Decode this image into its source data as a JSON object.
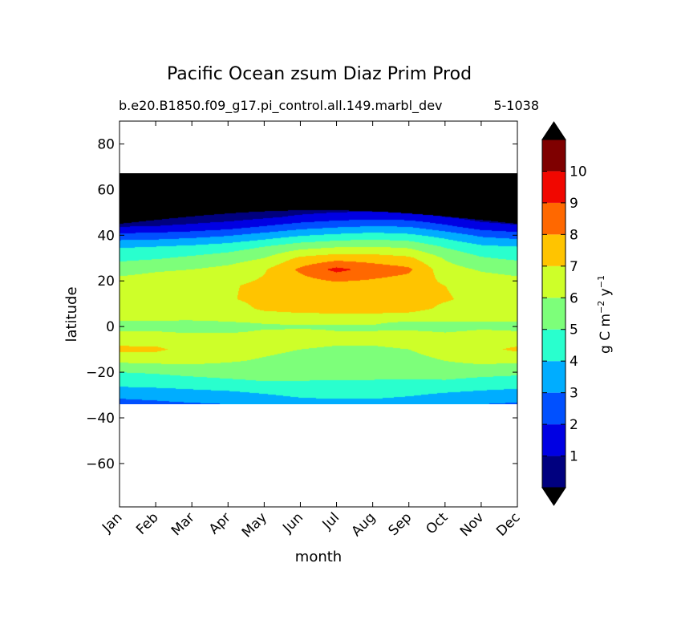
{
  "chart_data": {
    "type": "heatmap",
    "subtype": "filled-contour",
    "title": "Pacific Ocean zsum Diaz Prim Prod",
    "subtitle_left": "b.e20.B1850.f09_g17.pi_control.all.149.marbl_dev",
    "subtitle_right": "5-1038",
    "xlabel": "month",
    "ylabel": "latitude",
    "x_ticks": [
      "Jan",
      "Feb",
      "Mar",
      "Apr",
      "May",
      "Jun",
      "Jul",
      "Aug",
      "Sep",
      "Oct",
      "Nov",
      "Dec"
    ],
    "y_ticks": [
      "80",
      "60",
      "40",
      "20",
      "0",
      "−20",
      "−40",
      "−60"
    ],
    "y_tick_values": [
      80,
      60,
      40,
      20,
      0,
      -20,
      -40,
      -60
    ],
    "ylim": [
      -79,
      90
    ],
    "xlim": [
      0,
      11
    ],
    "data_lat_range": [
      -34,
      67
    ],
    "colorbar": {
      "label": "g C m⁻² y⁻¹",
      "label_main": "g C m",
      "label_exp1": "−2",
      "label_mid": " y",
      "label_exp2": "−1",
      "tick_labels": [
        "1",
        "2",
        "3",
        "4",
        "5",
        "6",
        "7",
        "8",
        "9",
        "10"
      ],
      "extend": "both",
      "under_color": "#000000",
      "over_color": "#000000",
      "colors": [
        "#00007f",
        "#0000e3",
        "#0050ff",
        "#00adff",
        "#29ffce",
        "#7dff7a",
        "#ceff29",
        "#ffc400",
        "#ff6800",
        "#f10700",
        "#7f0000"
      ]
    },
    "grid": false,
    "legend": "none",
    "annotations": "filled contours of primary productivity by month and latitude; black fill above ~45N (sea-ice region); peak 9-10 near 25N in Jul",
    "levels": [
      0,
      1,
      2,
      3,
      4,
      5,
      6,
      7,
      8,
      9,
      10,
      11
    ],
    "z_grid": {
      "months": [
        0,
        1,
        2,
        3,
        4,
        5,
        6,
        7,
        8,
        9,
        10,
        11
      ],
      "lats": [
        -34,
        -30,
        -25,
        -20,
        -15,
        -10,
        -5,
        -2,
        0,
        3,
        8,
        12,
        18,
        25,
        30,
        35,
        40,
        44,
        48,
        52,
        56,
        67
      ],
      "values": [
        [
          2.7,
          3.2,
          4.3,
          5.0,
          6.2,
          7.3,
          6.3,
          6.0,
          5.4,
          6.1,
          6.3,
          6.6,
          6.4,
          5.7,
          4.7,
          3.9,
          2.3,
          0.9,
          0.3,
          0.2,
          0.1,
          0.0
        ],
        [
          2.8,
          3.3,
          4.4,
          5.1,
          6.3,
          7.2,
          6.4,
          6.0,
          5.2,
          6.1,
          6.3,
          6.7,
          6.5,
          5.9,
          4.9,
          4.0,
          2.4,
          1.0,
          0.3,
          0.2,
          0.1,
          0.0
        ],
        [
          2.9,
          3.5,
          4.5,
          5.3,
          6.3,
          6.6,
          6.5,
          5.8,
          5.1,
          6.1,
          6.4,
          6.8,
          6.6,
          6.0,
          5.2,
          4.2,
          2.6,
          1.2,
          0.4,
          0.2,
          0.1,
          0.0
        ],
        [
          3.0,
          3.6,
          4.7,
          5.4,
          6.1,
          6.4,
          6.5,
          5.8,
          5.5,
          6.2,
          6.5,
          6.9,
          6.9,
          6.3,
          5.5,
          4.5,
          2.9,
          1.5,
          0.5,
          0.2,
          0.1,
          0.0
        ],
        [
          3.3,
          3.9,
          4.9,
          5.4,
          5.9,
          6.2,
          6.4,
          6.1,
          5.8,
          6.3,
          7.2,
          7.3,
          7.2,
          6.9,
          6.0,
          5.0,
          3.4,
          2.0,
          0.8,
          0.3,
          0.1,
          0.0
        ],
        [
          3.5,
          4.2,
          4.9,
          5.3,
          5.7,
          6.0,
          6.3,
          6.1,
          5.9,
          6.4,
          7.4,
          7.5,
          7.4,
          8.2,
          7.2,
          5.6,
          3.9,
          2.5,
          1.2,
          0.4,
          0.1,
          0.0
        ],
        [
          3.6,
          4.3,
          4.9,
          5.2,
          5.6,
          5.9,
          6.2,
          6.0,
          5.9,
          6.4,
          7.5,
          7.5,
          7.6,
          9.3,
          7.6,
          5.9,
          4.2,
          2.8,
          1.5,
          0.5,
          0.2,
          0.0
        ],
        [
          3.6,
          4.3,
          4.9,
          5.2,
          5.6,
          5.9,
          6.2,
          6.0,
          5.9,
          6.4,
          7.5,
          7.4,
          7.6,
          8.6,
          7.5,
          6.0,
          4.4,
          3.0,
          1.6,
          0.6,
          0.2,
          0.0
        ],
        [
          3.4,
          4.1,
          4.8,
          5.3,
          5.7,
          6.0,
          6.3,
          6.1,
          5.1,
          6.3,
          7.4,
          7.3,
          7.4,
          8.2,
          7.2,
          5.8,
          4.2,
          2.9,
          1.5,
          0.5,
          0.2,
          0.0
        ],
        [
          3.2,
          3.8,
          4.8,
          5.4,
          6.0,
          6.4,
          6.4,
          5.9,
          5.5,
          6.2,
          6.8,
          7.1,
          7.0,
          6.4,
          5.9,
          4.9,
          3.6,
          2.2,
          1.0,
          0.4,
          0.1,
          0.0
        ],
        [
          3.0,
          3.6,
          4.6,
          5.3,
          6.3,
          6.7,
          6.5,
          6.1,
          5.8,
          6.1,
          6.4,
          6.7,
          6.6,
          5.9,
          5.1,
          4.2,
          2.8,
          1.4,
          0.5,
          0.2,
          0.1,
          0.0
        ],
        [
          2.9,
          3.4,
          4.5,
          5.2,
          6.2,
          7.2,
          6.4,
          6.0,
          5.7,
          6.1,
          6.3,
          6.6,
          6.4,
          5.7,
          4.8,
          4.0,
          2.5,
          1.1,
          0.4,
          0.2,
          0.1,
          0.0
        ]
      ]
    }
  }
}
